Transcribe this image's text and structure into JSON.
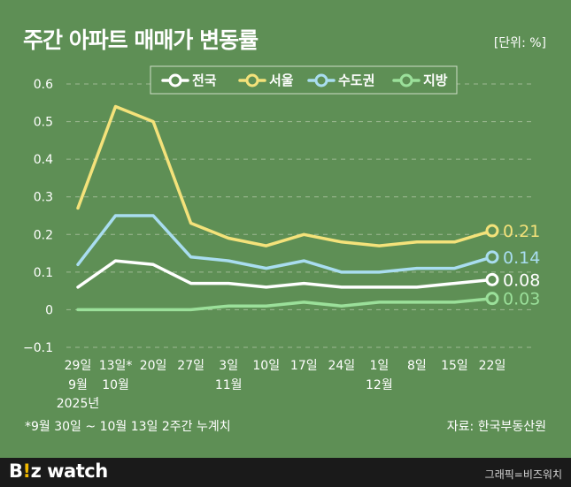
{
  "header": {
    "title": "주간 아파트 매매가 변동률",
    "unit": "[단위: %]"
  },
  "chart_data": {
    "type": "line",
    "categories": [
      "29일",
      "13일*",
      "20일",
      "27일",
      "3일",
      "10일",
      "17일",
      "24일",
      "1일",
      "8일",
      "15일",
      "22일"
    ],
    "month_labels": [
      "9월",
      "10월",
      "",
      "",
      "11월",
      "",
      "",
      "",
      "12월",
      "",
      "",
      ""
    ],
    "year_label": "2025년",
    "ylim": [
      -0.1,
      0.6
    ],
    "yticks": [
      "0.6",
      "0.5",
      "0.4",
      "0.3",
      "0.2",
      "0.1",
      "0",
      "−0.1"
    ],
    "ytick_values": [
      0.6,
      0.5,
      0.4,
      0.3,
      0.2,
      0.1,
      0,
      -0.1
    ],
    "series": [
      {
        "name": "전국",
        "color": "#ffffff",
        "values": [
          0.06,
          0.13,
          0.12,
          0.07,
          0.07,
          0.06,
          0.07,
          0.06,
          0.06,
          0.06,
          0.07,
          0.08
        ],
        "end_label": "0.08"
      },
      {
        "name": "서울",
        "color": "#f4e27a",
        "values": [
          0.27,
          0.54,
          0.5,
          0.23,
          0.19,
          0.17,
          0.2,
          0.18,
          0.17,
          0.18,
          0.18,
          0.21
        ],
        "end_label": "0.21"
      },
      {
        "name": "수도권",
        "color": "#a9ddf0",
        "values": [
          0.12,
          0.25,
          0.25,
          0.14,
          0.13,
          0.11,
          0.13,
          0.1,
          0.1,
          0.11,
          0.11,
          0.14
        ],
        "end_label": "0.14"
      },
      {
        "name": "지방",
        "color": "#9be09a",
        "values": [
          0.0,
          0.0,
          0.0,
          0.0,
          0.01,
          0.01,
          0.02,
          0.01,
          0.02,
          0.02,
          0.02,
          0.03
        ],
        "end_label": "0.03"
      }
    ],
    "footnote": "*9월 30일 ~ 10월 13일 2주간 누계치",
    "source": "자료: 한국부동산원"
  },
  "footer": {
    "logo_b": "B",
    "logo_i": "!",
    "logo_z": "z",
    "logo_watch": " watch",
    "credit": "그래픽=비즈워치"
  }
}
